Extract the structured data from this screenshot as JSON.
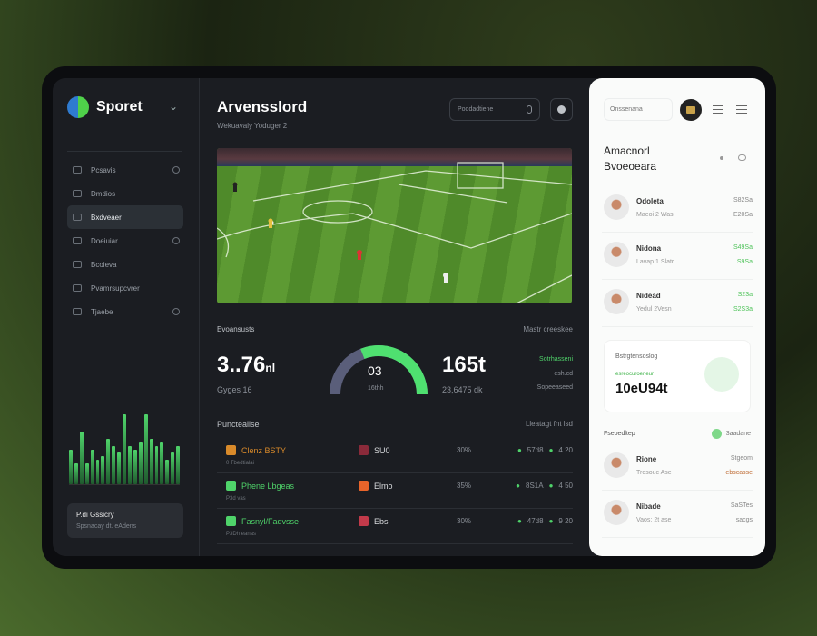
{
  "sidebar": {
    "brand": "Sporet",
    "items": [
      {
        "label": "Pcsavis"
      },
      {
        "label": "Dmdios"
      },
      {
        "label": "Bxdveaer",
        "active": true
      },
      {
        "label": "Doeiuiar"
      },
      {
        "label": "Bcoieva"
      },
      {
        "label": "Pvamrsupcvrer"
      },
      {
        "label": "Tjaebe"
      }
    ],
    "activity_bars": [
      0.5,
      0.3,
      0.75,
      0.3,
      0.5,
      0.35,
      0.4,
      0.65,
      0.55,
      0.45,
      1.0,
      0.55,
      0.5,
      0.6,
      1.0,
      0.65,
      0.55,
      0.6,
      0.35,
      0.45,
      0.55
    ],
    "promo": {
      "title": "P.di Gssicry",
      "subtitle": "Spsnacay dt. eAdens"
    }
  },
  "header": {
    "title": "Arvensslord",
    "subtitle": "Wekuavaly Yoduger 2",
    "search_placeholder": "Poodadtiene"
  },
  "stats": {
    "section_label": "Evoansusts",
    "right_label": "Mastr creeskee",
    "left_value": "3..76",
    "left_unit": "nl",
    "left_sub": "Gyges 16",
    "gauge_value": "03",
    "gauge_unit": "16thh",
    "gauge_fraction": 0.6,
    "right_value": "165t",
    "right_sub": "23,6475 dk",
    "green_label": "Sotrhasseni",
    "side_1": "esh.cd",
    "side_2": "Sopeeaseed"
  },
  "matches": {
    "title": "Puncteailse",
    "header_right": "Lleatagt fnt  lsd",
    "rows": [
      {
        "name": "Clenz BSTY",
        "sub": "0 Tbedtialai",
        "team": "SU0",
        "pct": "30%",
        "odds": [
          "57d8",
          "4 20"
        ],
        "color": "#d98a2a",
        "team_color": "#8a2a3a"
      },
      {
        "name": "Phene Lbgeas",
        "sub": "P3d vas",
        "team": "Elmo",
        "pct": "35%",
        "odds": [
          "8S1A",
          "4 50"
        ],
        "color": "#4fd36a",
        "team_color": "#e8642a"
      },
      {
        "name": "Fasnyl/Fadvsse",
        "sub": "P3Dh eanas",
        "team": "Ebs",
        "pct": "30%",
        "odds": [
          "47d8",
          "9 20"
        ],
        "color": "#4fd36a",
        "team_color": "#c23a4a"
      }
    ]
  },
  "right": {
    "search_placeholder": "Onssenana",
    "title": "Amacnorl Bvoeoeara",
    "users": [
      {
        "name": "Odoleta",
        "desc": "Maeoi 2 Was",
        "v1": "S82Sa",
        "v2": "E20Sa",
        "green": false
      },
      {
        "name": "Nidona",
        "desc": "Lavap 1 Slatr",
        "v1": "S49Sa",
        "v2": "S9Sa",
        "green": true
      },
      {
        "name": "Nidead",
        "desc": "Yedul 2Vesn",
        "v1": "S23a",
        "v2": "S2S3a",
        "green": true
      }
    ],
    "card": {
      "title": "Bstrgtensoslog",
      "green_label": "esreocuroeneur",
      "value": "10eU94t"
    },
    "section": "Fseoedltep",
    "section_right": "3aadane",
    "users2": [
      {
        "name": "Rione",
        "desc": "Trosouc Ase",
        "v1": "Stgeom",
        "v2": "ebscasse"
      },
      {
        "name": "Nibade",
        "desc": "Vaos: 2t ase",
        "v1": "SaSTes",
        "v2": "sacgs"
      }
    ]
  },
  "colors": {
    "accent": "#4fd36a",
    "background": "#1b1d22",
    "panel": "#fafbfa"
  }
}
